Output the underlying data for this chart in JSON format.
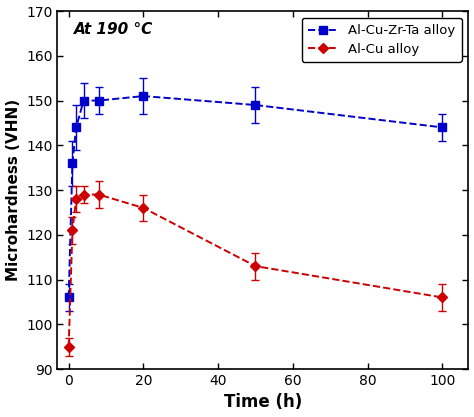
{
  "title_text": "At 190 °C",
  "xlabel": "Time (h)",
  "ylabel": "Microhardness (VHN)",
  "xlim": [
    -3,
    107
  ],
  "ylim": [
    90,
    170
  ],
  "xticks": [
    0,
    20,
    40,
    60,
    80,
    100
  ],
  "yticks": [
    90,
    100,
    110,
    120,
    130,
    140,
    150,
    160,
    170
  ],
  "blue_x": [
    0,
    1,
    2,
    4,
    8,
    20,
    50,
    100
  ],
  "blue_y": [
    106,
    136,
    144,
    150,
    150,
    151,
    149,
    144
  ],
  "blue_yerr": [
    3,
    5,
    5,
    4,
    3,
    4,
    4,
    3
  ],
  "blue_color": "#0000cc",
  "red_x": [
    0,
    1,
    2,
    4,
    8,
    20,
    50,
    100
  ],
  "red_y": [
    95,
    121,
    128,
    129,
    129,
    126,
    113,
    106
  ],
  "red_yerr": [
    2,
    3,
    3,
    2,
    3,
    3,
    3,
    3
  ],
  "red_color": "#cc0000",
  "legend_blue_label": "Al-Cu-Zr-Ta alloy",
  "legend_red_label": "Al-Cu alloy",
  "bg_color": "#ffffff",
  "figsize": [
    4.74,
    4.17
  ],
  "dpi": 100
}
